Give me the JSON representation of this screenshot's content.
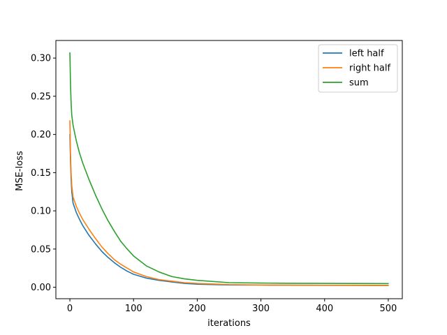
{
  "chart_data": {
    "type": "line",
    "title": "",
    "xlabel": "iterations",
    "ylabel": "MSE-loss",
    "xlim": [
      -22,
      522
    ],
    "ylim": [
      -0.015,
      0.323
    ],
    "xticks": [
      0,
      100,
      200,
      300,
      400,
      500
    ],
    "yticks": [
      0.0,
      0.05,
      0.1,
      0.15,
      0.2,
      0.25,
      0.3
    ],
    "grid": false,
    "legend_position": "top-right",
    "series": [
      {
        "name": "left half",
        "color": "#1f77b4",
        "x": [
          0,
          1,
          2,
          3,
          5,
          8,
          10,
          15,
          20,
          30,
          40,
          50,
          60,
          70,
          80,
          90,
          100,
          120,
          140,
          160,
          180,
          200,
          250,
          300,
          350,
          400,
          450,
          500
        ],
        "y": [
          0.2,
          0.165,
          0.14,
          0.125,
          0.11,
          0.103,
          0.098,
          0.089,
          0.081,
          0.068,
          0.057,
          0.047,
          0.039,
          0.032,
          0.026,
          0.021,
          0.017,
          0.012,
          0.009,
          0.007,
          0.005,
          0.004,
          0.003,
          0.0028,
          0.0026,
          0.0025,
          0.0024,
          0.0023
        ]
      },
      {
        "name": "right half",
        "color": "#ff7f0e",
        "x": [
          0,
          1,
          2,
          3,
          5,
          8,
          10,
          15,
          20,
          30,
          40,
          50,
          60,
          70,
          80,
          90,
          100,
          120,
          140,
          160,
          180,
          200,
          250,
          300,
          350,
          400,
          450,
          500
        ],
        "y": [
          0.218,
          0.175,
          0.148,
          0.133,
          0.118,
          0.111,
          0.106,
          0.097,
          0.089,
          0.076,
          0.064,
          0.053,
          0.044,
          0.036,
          0.03,
          0.025,
          0.02,
          0.014,
          0.01,
          0.008,
          0.006,
          0.005,
          0.0035,
          0.003,
          0.0028,
          0.0027,
          0.0026,
          0.0025
        ]
      },
      {
        "name": "sum",
        "color": "#2ca02c",
        "x": [
          0,
          1,
          2,
          3,
          5,
          8,
          10,
          15,
          20,
          30,
          40,
          50,
          60,
          70,
          80,
          90,
          100,
          120,
          140,
          160,
          180,
          200,
          250,
          300,
          350,
          400,
          450,
          500
        ],
        "y": [
          0.307,
          0.265,
          0.24,
          0.225,
          0.212,
          0.2,
          0.192,
          0.176,
          0.163,
          0.141,
          0.121,
          0.103,
          0.087,
          0.073,
          0.06,
          0.05,
          0.041,
          0.028,
          0.02,
          0.014,
          0.011,
          0.009,
          0.006,
          0.0055,
          0.0052,
          0.005,
          0.0049,
          0.0048
        ]
      }
    ]
  }
}
